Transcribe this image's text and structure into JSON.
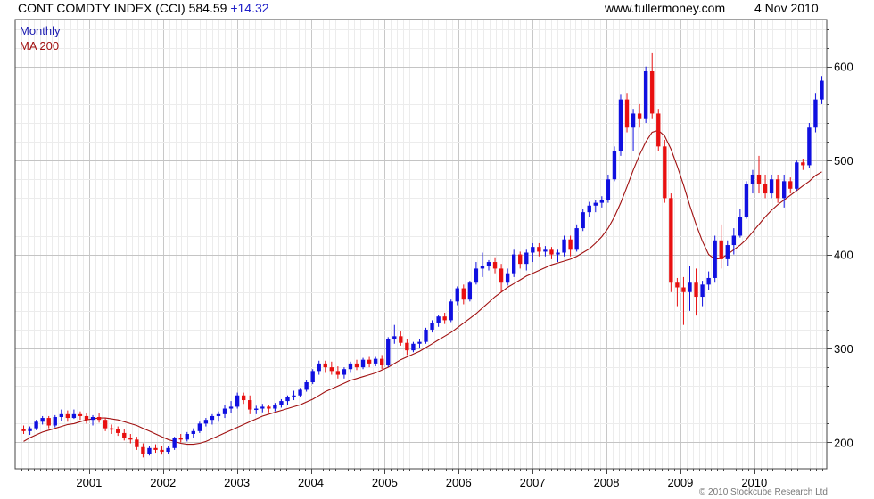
{
  "header": {
    "title": "CONT COMDTY INDEX (CCI)",
    "last": "584.59",
    "change": "+14.32",
    "source": "www.fullermoney.com",
    "date": "4 Nov 2010"
  },
  "footer": {
    "copyright": "© 2010 Stockcube Research Ltd"
  },
  "colors": {
    "up": "#1010e0",
    "down": "#e81010",
    "ma": "#a01010",
    "grid": "#d8d8d8",
    "monthly_label": "#1a1ab0",
    "ma_label": "#a01010"
  },
  "chart_data": {
    "type": "candlestick",
    "title": "CONT COMDTY INDEX (CCI)",
    "ylim": [
      172,
      650
    ],
    "y_ticks": [
      200,
      300,
      400,
      500,
      600
    ],
    "y_axis_side": "right",
    "x_labels": [
      "2001",
      "2002",
      "2003",
      "2004",
      "2005",
      "2006",
      "2007",
      "2008",
      "2009",
      "2010"
    ],
    "x_label_positions": [
      2001,
      2002,
      2003,
      2004,
      2005,
      2006,
      2007,
      2008,
      2009,
      2010
    ],
    "x_range": [
      2000.0,
      2010.98
    ],
    "grid": true,
    "legend": [
      "Monthly",
      "MA 200"
    ],
    "legend_placement": "top-left",
    "series": [
      {
        "name": "Monthly",
        "ohlc": [
          [
            214,
            218,
            209,
            212
          ],
          [
            212,
            217,
            208,
            215
          ],
          [
            215,
            224,
            213,
            222
          ],
          [
            222,
            228,
            219,
            226
          ],
          [
            226,
            228,
            215,
            218
          ],
          [
            218,
            229,
            216,
            227
          ],
          [
            227,
            235,
            223,
            230
          ],
          [
            230,
            234,
            222,
            226
          ],
          [
            226,
            235,
            225,
            230
          ],
          [
            230,
            233,
            224,
            228
          ],
          [
            228,
            231,
            220,
            224
          ],
          [
            224,
            229,
            218,
            227
          ],
          [
            227,
            231,
            221,
            224
          ],
          [
            224,
            226,
            212,
            215
          ],
          [
            215,
            219,
            209,
            214
          ],
          [
            214,
            217,
            207,
            210
          ],
          [
            210,
            214,
            202,
            205
          ],
          [
            205,
            209,
            199,
            203
          ],
          [
            203,
            206,
            192,
            195
          ],
          [
            195,
            199,
            184,
            188
          ],
          [
            188,
            196,
            186,
            194
          ],
          [
            194,
            198,
            189,
            192
          ],
          [
            192,
            196,
            187,
            190
          ],
          [
            190,
            196,
            188,
            194
          ],
          [
            194,
            206,
            192,
            205
          ],
          [
            205,
            209,
            200,
            203
          ],
          [
            203,
            211,
            201,
            209
          ],
          [
            209,
            215,
            205,
            212
          ],
          [
            212,
            222,
            210,
            220
          ],
          [
            220,
            226,
            217,
            224
          ],
          [
            224,
            230,
            219,
            228
          ],
          [
            228,
            233,
            222,
            230
          ],
          [
            230,
            240,
            226,
            236
          ],
          [
            236,
            244,
            231,
            238
          ],
          [
            238,
            253,
            236,
            250
          ],
          [
            250,
            253,
            241,
            245
          ],
          [
            245,
            250,
            230,
            235
          ],
          [
            235,
            239,
            230,
            236
          ],
          [
            236,
            241,
            232,
            238
          ],
          [
            238,
            240,
            232,
            236
          ],
          [
            236,
            242,
            233,
            240
          ],
          [
            240,
            246,
            237,
            244
          ],
          [
            244,
            250,
            240,
            248
          ],
          [
            248,
            255,
            245,
            250
          ],
          [
            250,
            258,
            248,
            256
          ],
          [
            256,
            266,
            254,
            264
          ],
          [
            264,
            278,
            262,
            276
          ],
          [
            276,
            287,
            272,
            284
          ],
          [
            284,
            287,
            274,
            280
          ],
          [
            280,
            286,
            272,
            276
          ],
          [
            276,
            281,
            268,
            272
          ],
          [
            272,
            280,
            268,
            278
          ],
          [
            278,
            286,
            274,
            284
          ],
          [
            284,
            288,
            277,
            280
          ],
          [
            280,
            290,
            278,
            288
          ],
          [
            288,
            291,
            280,
            284
          ],
          [
            284,
            291,
            281,
            289
          ],
          [
            289,
            293,
            278,
            282
          ],
          [
            282,
            312,
            280,
            310
          ],
          [
            310,
            325,
            305,
            313
          ],
          [
            313,
            318,
            303,
            306
          ],
          [
            306,
            310,
            293,
            298
          ],
          [
            298,
            307,
            296,
            305
          ],
          [
            305,
            310,
            300,
            307
          ],
          [
            307,
            322,
            305,
            320
          ],
          [
            320,
            330,
            317,
            327
          ],
          [
            327,
            336,
            323,
            334
          ],
          [
            334,
            338,
            326,
            330
          ],
          [
            330,
            352,
            328,
            350
          ],
          [
            350,
            366,
            346,
            364
          ],
          [
            364,
            368,
            347,
            352
          ],
          [
            352,
            372,
            350,
            370
          ],
          [
            370,
            392,
            368,
            385
          ],
          [
            385,
            402,
            376,
            388
          ],
          [
            388,
            394,
            383,
            392
          ],
          [
            392,
            397,
            380,
            385
          ],
          [
            385,
            390,
            360,
            370
          ],
          [
            370,
            385,
            367,
            380
          ],
          [
            380,
            405,
            376,
            400
          ],
          [
            400,
            403,
            385,
            390
          ],
          [
            390,
            405,
            383,
            402
          ],
          [
            402,
            412,
            392,
            408
          ],
          [
            408,
            412,
            398,
            403
          ],
          [
            403,
            409,
            398,
            405
          ],
          [
            405,
            408,
            395,
            400
          ],
          [
            400,
            405,
            392,
            402
          ],
          [
            402,
            420,
            398,
            416
          ],
          [
            416,
            420,
            398,
            405
          ],
          [
            405,
            432,
            403,
            428
          ],
          [
            428,
            448,
            425,
            445
          ],
          [
            445,
            456,
            440,
            452
          ],
          [
            452,
            458,
            445,
            455
          ],
          [
            455,
            462,
            450,
            458
          ],
          [
            458,
            485,
            455,
            480
          ],
          [
            480,
            515,
            478,
            510
          ],
          [
            510,
            570,
            505,
            565
          ],
          [
            565,
            572,
            530,
            535
          ],
          [
            535,
            555,
            510,
            550
          ],
          [
            550,
            560,
            535,
            545
          ],
          [
            545,
            600,
            540,
            595
          ],
          [
            595,
            615,
            545,
            550
          ],
          [
            550,
            555,
            510,
            515
          ],
          [
            515,
            522,
            455,
            460
          ],
          [
            460,
            465,
            360,
            370
          ],
          [
            370,
            375,
            345,
            365
          ],
          [
            365,
            376,
            325,
            360
          ],
          [
            360,
            388,
            340,
            370
          ],
          [
            370,
            385,
            335,
            355
          ],
          [
            355,
            372,
            345,
            368
          ],
          [
            368,
            382,
            362,
            375
          ],
          [
            375,
            420,
            370,
            415
          ],
          [
            415,
            432,
            385,
            395
          ],
          [
            395,
            415,
            388,
            410
          ],
          [
            410,
            428,
            400,
            420
          ],
          [
            420,
            448,
            418,
            440
          ],
          [
            440,
            478,
            438,
            475
          ],
          [
            475,
            490,
            465,
            485
          ],
          [
            485,
            505,
            465,
            475
          ],
          [
            475,
            485,
            460,
            465
          ],
          [
            465,
            485,
            460,
            480
          ],
          [
            480,
            485,
            455,
            460
          ],
          [
            460,
            485,
            450,
            478
          ],
          [
            478,
            482,
            465,
            470
          ],
          [
            470,
            500,
            468,
            498
          ],
          [
            498,
            502,
            490,
            495
          ],
          [
            495,
            540,
            492,
            535
          ],
          [
            535,
            572,
            530,
            565
          ],
          [
            565,
            590,
            560,
            585
          ]
        ]
      },
      {
        "name": "MA 200",
        "values": [
          201,
          205,
          208,
          211,
          213,
          215,
          217,
          219,
          220,
          222,
          224,
          225,
          226,
          226,
          225,
          224,
          222,
          220,
          218,
          215,
          212,
          209,
          206,
          203,
          201,
          199,
          198,
          198,
          199,
          201,
          204,
          207,
          210,
          213,
          216,
          219,
          222,
          225,
          228,
          230,
          232,
          234,
          236,
          238,
          240,
          243,
          246,
          250,
          254,
          257,
          260,
          263,
          266,
          268,
          270,
          272,
          274,
          277,
          280,
          284,
          288,
          291,
          294,
          297,
          301,
          305,
          309,
          313,
          317,
          322,
          327,
          332,
          337,
          343,
          349,
          355,
          360,
          365,
          369,
          373,
          377,
          380,
          383,
          386,
          389,
          391,
          393,
          395,
          398,
          402,
          406,
          412,
          419,
          428,
          440,
          455,
          472,
          490,
          506,
          520,
          530,
          532,
          526,
          512,
          494,
          474,
          452,
          432,
          414,
          400,
          395,
          396,
          400,
          405,
          410,
          416,
          424,
          432,
          440,
          447,
          453,
          458,
          463,
          468,
          473,
          478,
          484,
          488
        ]
      }
    ]
  }
}
